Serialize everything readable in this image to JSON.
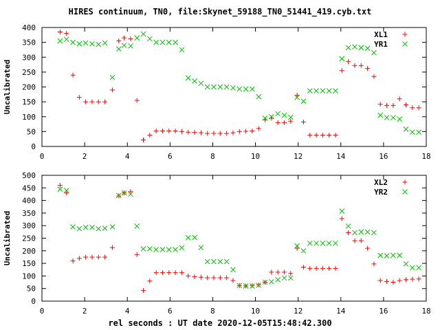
{
  "title": "HIRES continuum, TN0, file:Skynet_59188_TN0_51441_419.cyb.txt",
  "xlabel": "rel seconds : UT date 2020-12-05T15:48:42.300",
  "colors": {
    "red": "#ff0000",
    "green": "#00c000",
    "axis": "#000000"
  },
  "chart_data": [
    {
      "type": "scatter",
      "xlim": [
        0,
        18
      ],
      "ylim": [
        0,
        400
      ],
      "xticks": [
        0,
        2,
        4,
        6,
        8,
        10,
        12,
        14,
        16,
        18
      ],
      "yticks": [
        0,
        50,
        100,
        150,
        200,
        250,
        300,
        350,
        400
      ],
      "ylabel": "Uncalibrated",
      "legend_position": "top-right",
      "series": [
        {
          "name": "XL1",
          "marker": "plus",
          "color": "#ff0000",
          "x": [
            0.85,
            1.15,
            1.45,
            1.75,
            2.05,
            2.35,
            2.65,
            2.95,
            3.3,
            3.6,
            3.85,
            4.15,
            4.45,
            4.75,
            5.05,
            5.35,
            5.65,
            5.95,
            6.25,
            6.55,
            6.85,
            7.15,
            7.45,
            7.75,
            8.05,
            8.35,
            8.65,
            8.95,
            9.25,
            9.55,
            9.85,
            10.15,
            10.45,
            10.75,
            11.05,
            11.35,
            11.65,
            11.95,
            12.25,
            12.55,
            12.85,
            13.15,
            13.45,
            13.75,
            14.05,
            14.35,
            14.65,
            14.95,
            15.25,
            15.55,
            15.85,
            16.15,
            16.45,
            16.75,
            17.05,
            17.35,
            17.65
          ],
          "y": [
            385,
            380,
            240,
            165,
            150,
            150,
            150,
            150,
            190,
            355,
            365,
            362,
            155,
            22,
            38,
            52,
            52,
            52,
            52,
            50,
            48,
            47,
            46,
            44,
            44,
            44,
            44,
            46,
            50,
            51,
            52,
            60,
            90,
            95,
            80,
            80,
            85,
            172,
            82,
            38,
            38,
            38,
            38,
            38,
            255,
            285,
            272,
            272,
            262,
            235,
            142,
            138,
            138,
            160,
            140,
            130,
            130
          ]
        },
        {
          "name": "YR1",
          "marker": "cross",
          "color": "#00c000",
          "x": [
            0.85,
            1.15,
            1.45,
            1.75,
            2.05,
            2.35,
            2.65,
            2.95,
            3.3,
            3.6,
            3.85,
            4.15,
            4.45,
            4.75,
            5.05,
            5.35,
            5.65,
            5.95,
            6.25,
            6.55,
            6.85,
            7.15,
            7.45,
            7.75,
            8.05,
            8.35,
            8.65,
            8.95,
            9.25,
            9.55,
            9.85,
            10.15,
            10.45,
            10.75,
            11.05,
            11.35,
            11.65,
            11.95,
            12.25,
            12.55,
            12.85,
            13.15,
            13.45,
            13.75,
            14.05,
            14.35,
            14.65,
            14.95,
            15.25,
            15.55,
            15.85,
            16.15,
            16.45,
            16.75,
            17.05,
            17.35,
            17.65
          ],
          "y": [
            355,
            360,
            350,
            345,
            348,
            345,
            343,
            348,
            232,
            328,
            340,
            338,
            365,
            378,
            362,
            350,
            350,
            350,
            350,
            325,
            230,
            220,
            212,
            200,
            200,
            200,
            200,
            197,
            193,
            193,
            193,
            167,
            95,
            100,
            110,
            105,
            98,
            165,
            152,
            187,
            187,
            187,
            187,
            187,
            295,
            332,
            335,
            332,
            330,
            315,
            105,
            97,
            97,
            92,
            58,
            48,
            48
          ]
        }
      ]
    },
    {
      "type": "scatter",
      "xlim": [
        0,
        18
      ],
      "ylim": [
        0,
        500
      ],
      "xticks": [
        0,
        2,
        4,
        6,
        8,
        10,
        12,
        14,
        16,
        18
      ],
      "yticks": [
        0,
        50,
        100,
        150,
        200,
        250,
        300,
        350,
        400,
        450,
        500
      ],
      "ylabel": "Uncalibrated",
      "legend_position": "top-right",
      "series": [
        {
          "name": "XL2",
          "marker": "plus",
          "color": "#ff0000",
          "x": [
            0.85,
            1.15,
            1.45,
            1.75,
            2.05,
            2.35,
            2.65,
            2.95,
            3.3,
            3.6,
            3.85,
            4.15,
            4.45,
            4.75,
            5.05,
            5.35,
            5.65,
            5.95,
            6.25,
            6.55,
            6.85,
            7.15,
            7.45,
            7.75,
            8.05,
            8.35,
            8.65,
            8.95,
            9.25,
            9.55,
            9.85,
            10.15,
            10.45,
            10.75,
            11.05,
            11.35,
            11.65,
            11.95,
            12.25,
            12.55,
            12.85,
            13.15,
            13.45,
            13.75,
            14.05,
            14.35,
            14.65,
            14.95,
            15.25,
            15.55,
            15.85,
            16.15,
            16.45,
            16.75,
            17.05,
            17.35,
            17.65
          ],
          "y": [
            460,
            430,
            160,
            170,
            175,
            175,
            175,
            175,
            213,
            418,
            430,
            435,
            185,
            42,
            80,
            113,
            113,
            113,
            113,
            113,
            100,
            97,
            95,
            93,
            93,
            93,
            93,
            82,
            62,
            60,
            62,
            65,
            75,
            115,
            115,
            115,
            110,
            210,
            135,
            130,
            130,
            130,
            130,
            130,
            328,
            272,
            240,
            240,
            210,
            148,
            82,
            78,
            75,
            82,
            85,
            87,
            88
          ]
        },
        {
          "name": "YR2",
          "marker": "cross",
          "color": "#00c000",
          "x": [
            0.85,
            1.15,
            1.45,
            1.75,
            2.05,
            2.35,
            2.65,
            2.95,
            3.3,
            3.6,
            3.85,
            4.15,
            4.45,
            4.75,
            5.05,
            5.35,
            5.65,
            5.95,
            6.25,
            6.55,
            6.85,
            7.15,
            7.45,
            7.75,
            8.05,
            8.35,
            8.65,
            8.95,
            9.25,
            9.55,
            9.85,
            10.15,
            10.45,
            10.75,
            11.05,
            11.35,
            11.65,
            11.95,
            12.25,
            12.55,
            12.85,
            13.15,
            13.45,
            13.75,
            14.05,
            14.35,
            14.65,
            14.95,
            15.25,
            15.55,
            15.85,
            16.15,
            16.45,
            16.75,
            17.05,
            17.35,
            17.65
          ],
          "y": [
            445,
            440,
            295,
            288,
            293,
            293,
            288,
            290,
            295,
            420,
            430,
            425,
            298,
            208,
            208,
            205,
            205,
            205,
            205,
            212,
            252,
            253,
            213,
            157,
            157,
            157,
            157,
            125,
            62,
            60,
            60,
            63,
            75,
            77,
            85,
            92,
            92,
            220,
            200,
            230,
            230,
            230,
            230,
            230,
            358,
            298,
            272,
            275,
            275,
            272,
            182,
            180,
            182,
            182,
            148,
            133,
            133
          ]
        }
      ]
    }
  ]
}
